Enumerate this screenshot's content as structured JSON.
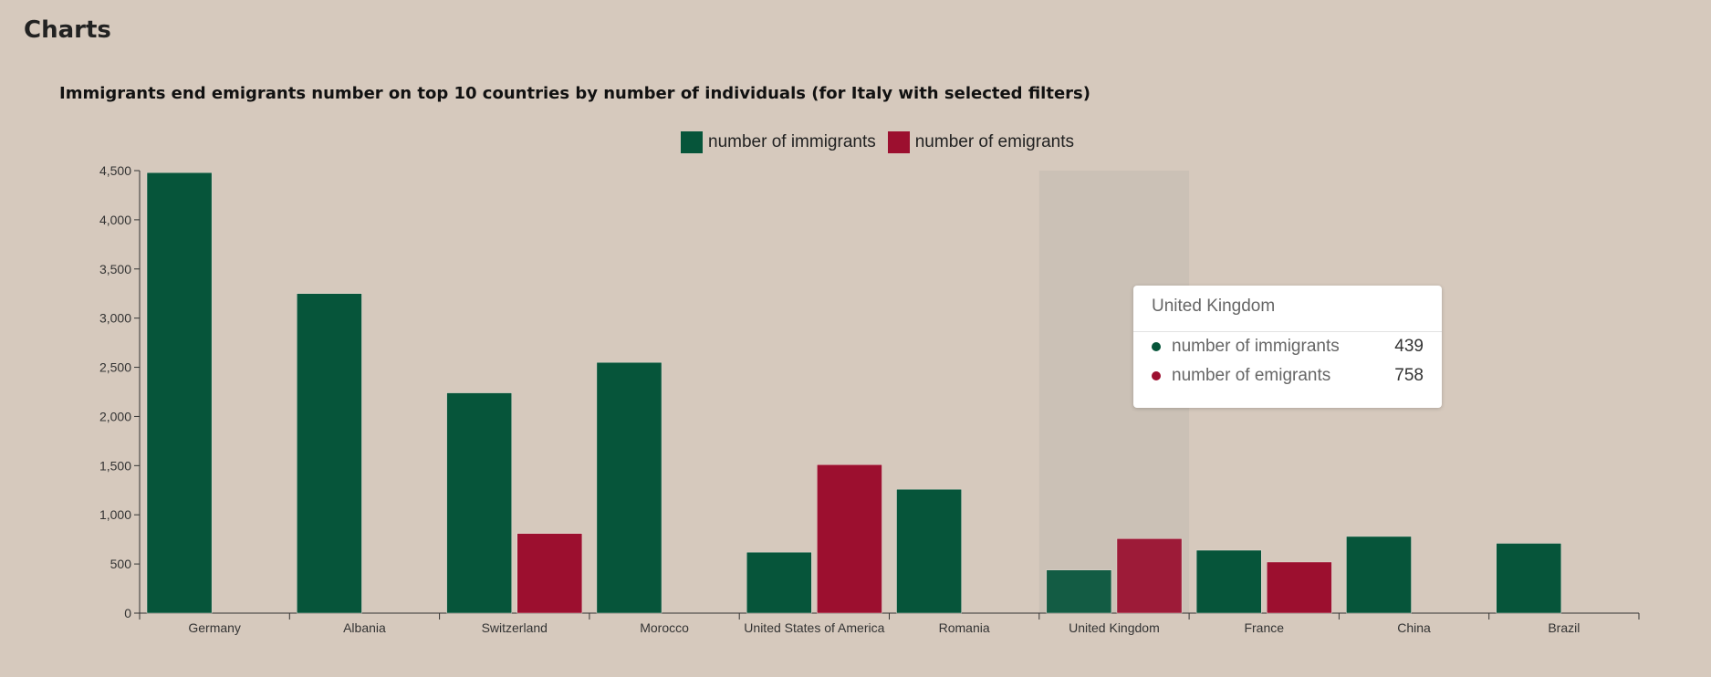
{
  "page": {
    "title": "Charts"
  },
  "chart_data": {
    "type": "bar",
    "title": "Immigrants end emigrants number on top 10 countries by number of individuals (for Italy with selected filters)",
    "categories": [
      "Germany",
      "Albania",
      "Switzerland",
      "Morocco",
      "United States of America",
      "Romania",
      "United Kingdom",
      "France",
      "China",
      "Brazil"
    ],
    "series": [
      {
        "name": "number of immigrants",
        "color": "#06553a",
        "values": [
          4480,
          3250,
          2240,
          2550,
          620,
          1260,
          439,
          640,
          780,
          710
        ]
      },
      {
        "name": "number of emigrants",
        "color": "#9c0f2f",
        "values": [
          0,
          0,
          810,
          0,
          1510,
          0,
          758,
          520,
          0,
          0
        ]
      }
    ],
    "ylim": [
      0,
      4500
    ],
    "yticks": [
      "0",
      "500",
      "1,000",
      "1,500",
      "2,000",
      "2,500",
      "3,000",
      "3,500",
      "4,000",
      "4,500"
    ],
    "legend_position": "top-center",
    "grid": false,
    "highlighted_category": "United Kingdom"
  },
  "tooltip": {
    "title": "United Kingdom",
    "rows": [
      {
        "name": "number of immigrants",
        "value": "439",
        "color": "#06553a"
      },
      {
        "name": "number of emigrants",
        "value": "758",
        "color": "#9c0f2f"
      }
    ]
  }
}
